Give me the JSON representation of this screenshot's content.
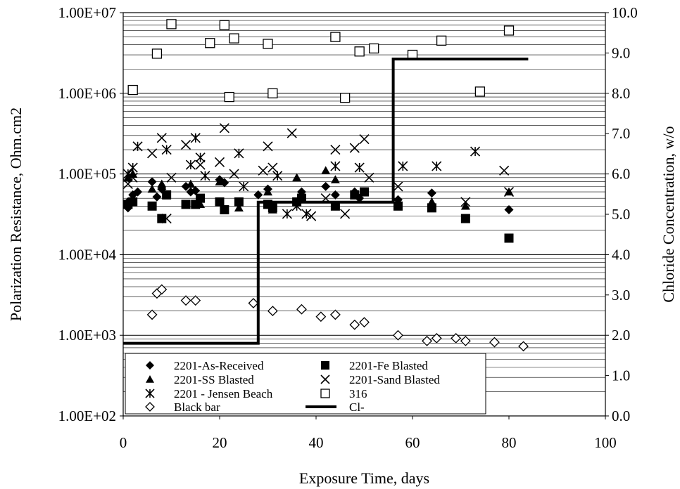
{
  "chart_data": {
    "type": "scatter",
    "title": "",
    "xlabel": "Exposure Time, days",
    "ylabel": "Polarization Resistance, Ohm.cm2",
    "y2label": "Chloride Concentration, w/o",
    "xlim": [
      0,
      100
    ],
    "ylim": [
      100,
      10000000
    ],
    "y2lim": [
      0,
      10
    ],
    "yscale": "log",
    "grid": "horizontal",
    "legend_position": "bottom-left",
    "x_ticks": [
      "0",
      "20",
      "40",
      "60",
      "80",
      "100"
    ],
    "y_ticks": [
      "1.00E+02",
      "1.00E+03",
      "1.00E+04",
      "1.00E+05",
      "1.00E+06",
      "1.00E+07"
    ],
    "y2_ticks": [
      "0.0",
      "1.0",
      "2.0",
      "3.0",
      "4.0",
      "5.0",
      "6.0",
      "7.0",
      "8.0",
      "9.0",
      "10.0"
    ],
    "series": [
      {
        "name": "2201-As-Received",
        "marker": "diamond-filled",
        "axis": "left",
        "points": [
          [
            1,
            38000
          ],
          [
            1,
            45000
          ],
          [
            2,
            48000
          ],
          [
            2,
            55000
          ],
          [
            3,
            60000
          ],
          [
            6,
            80000
          ],
          [
            7,
            52000
          ],
          [
            8,
            65000
          ],
          [
            13,
            70000
          ],
          [
            14,
            60000
          ],
          [
            15,
            62000
          ],
          [
            20,
            85000
          ],
          [
            21,
            78000
          ],
          [
            28,
            55000
          ],
          [
            30,
            65000
          ],
          [
            37,
            60000
          ],
          [
            42,
            70000
          ],
          [
            44,
            55000
          ],
          [
            48,
            60000
          ],
          [
            49,
            50000
          ],
          [
            57,
            48000
          ],
          [
            64,
            58000
          ],
          [
            80,
            36000
          ]
        ]
      },
      {
        "name": "2201-Fe Blasted",
        "marker": "square-filled",
        "axis": "left",
        "points": [
          [
            1,
            42000
          ],
          [
            2,
            45000
          ],
          [
            6,
            40000
          ],
          [
            8,
            28000
          ],
          [
            9,
            55000
          ],
          [
            13,
            42000
          ],
          [
            15,
            42000
          ],
          [
            16,
            50000
          ],
          [
            20,
            45000
          ],
          [
            21,
            36000
          ],
          [
            24,
            45000
          ],
          [
            30,
            42000
          ],
          [
            31,
            38000
          ],
          [
            36,
            45000
          ],
          [
            37,
            50000
          ],
          [
            44,
            40000
          ],
          [
            48,
            55000
          ],
          [
            50,
            60000
          ],
          [
            57,
            40000
          ],
          [
            64,
            38000
          ],
          [
            71,
            28000
          ],
          [
            80,
            16000
          ]
        ]
      },
      {
        "name": "2201-SS Blasted",
        "marker": "triangle-filled",
        "axis": "left",
        "points": [
          [
            1,
            90000
          ],
          [
            2,
            100000
          ],
          [
            6,
            65000
          ],
          [
            8,
            75000
          ],
          [
            14,
            75000
          ],
          [
            16,
            42000
          ],
          [
            20,
            80000
          ],
          [
            24,
            38000
          ],
          [
            30,
            60000
          ],
          [
            31,
            36000
          ],
          [
            36,
            90000
          ],
          [
            42,
            110000
          ],
          [
            44,
            85000
          ],
          [
            48,
            60000
          ],
          [
            57,
            42000
          ],
          [
            64,
            45000
          ],
          [
            71,
            40000
          ],
          [
            80,
            60000
          ]
        ]
      },
      {
        "name": "2201-Sand Blasted",
        "marker": "x",
        "axis": "left",
        "points": [
          [
            1,
            75000
          ],
          [
            2,
            90000
          ],
          [
            6,
            180000
          ],
          [
            8,
            280000
          ],
          [
            9,
            28000
          ],
          [
            10,
            90000
          ],
          [
            13,
            230000
          ],
          [
            16,
            130000
          ],
          [
            20,
            140000
          ],
          [
            21,
            370000
          ],
          [
            23,
            100000
          ],
          [
            29,
            110000
          ],
          [
            30,
            220000
          ],
          [
            31,
            120000
          ],
          [
            35,
            320000
          ],
          [
            39,
            30000
          ],
          [
            42,
            50000
          ],
          [
            44,
            200000
          ],
          [
            46,
            32000
          ],
          [
            48,
            210000
          ],
          [
            50,
            270000
          ],
          [
            51,
            90000
          ],
          [
            57,
            70000
          ],
          [
            71,
            45000
          ],
          [
            79,
            110000
          ],
          [
            80,
            60000
          ]
        ]
      },
      {
        "name": "2201 - Jensen Beach",
        "marker": "asterisk",
        "axis": "left",
        "points": [
          [
            1,
            100000
          ],
          [
            2,
            120000
          ],
          [
            3,
            220000
          ],
          [
            9,
            200000
          ],
          [
            14,
            130000
          ],
          [
            15,
            280000
          ],
          [
            16,
            160000
          ],
          [
            17,
            95000
          ],
          [
            24,
            180000
          ],
          [
            25,
            70000
          ],
          [
            32,
            95000
          ],
          [
            34,
            32000
          ],
          [
            36,
            40000
          ],
          [
            38,
            32000
          ],
          [
            44,
            125000
          ],
          [
            49,
            120000
          ],
          [
            58,
            125000
          ],
          [
            65,
            125000
          ],
          [
            73,
            190000
          ]
        ]
      },
      {
        "name": "316",
        "marker": "square-open",
        "axis": "left",
        "points": [
          [
            2,
            1100000
          ],
          [
            7,
            3100000
          ],
          [
            10,
            7200000
          ],
          [
            18,
            4200000
          ],
          [
            21,
            7000000
          ],
          [
            22,
            900000
          ],
          [
            23,
            4800000
          ],
          [
            30,
            4100000
          ],
          [
            31,
            1000000
          ],
          [
            44,
            5000000
          ],
          [
            46,
            880000
          ],
          [
            49,
            3300000
          ],
          [
            52,
            3600000
          ],
          [
            60,
            3000000
          ],
          [
            66,
            4500000
          ],
          [
            74,
            1050000
          ],
          [
            80,
            6000000
          ]
        ]
      },
      {
        "name": "Black bar",
        "marker": "diamond-open",
        "axis": "left",
        "points": [
          [
            6,
            1800
          ],
          [
            7,
            3300
          ],
          [
            8,
            3700
          ],
          [
            13,
            2700
          ],
          [
            15,
            2700
          ],
          [
            27,
            2500
          ],
          [
            31,
            2000
          ],
          [
            37,
            2100
          ],
          [
            41,
            1700
          ],
          [
            44,
            1800
          ],
          [
            48,
            1350
          ],
          [
            50,
            1450
          ],
          [
            57,
            1000
          ],
          [
            63,
            850
          ],
          [
            65,
            920
          ],
          [
            69,
            920
          ],
          [
            71,
            850
          ],
          [
            77,
            820
          ],
          [
            83,
            730
          ]
        ]
      },
      {
        "name": "Cl-",
        "marker": "line",
        "axis": "right",
        "points": [
          [
            0,
            1.8
          ],
          [
            28,
            1.8
          ],
          [
            28,
            5.3
          ],
          [
            56,
            5.3
          ],
          [
            56,
            8.85
          ],
          [
            84,
            8.85
          ]
        ]
      }
    ]
  }
}
